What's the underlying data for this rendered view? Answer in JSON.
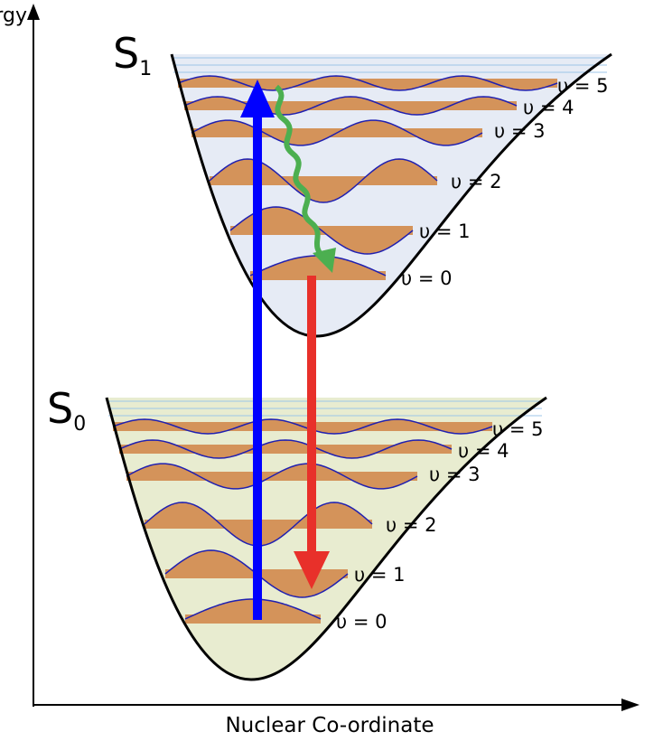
{
  "axes": {
    "y_label": "Energy",
    "x_label": "Nuclear Co-ordinate"
  },
  "states": [
    {
      "label": "S",
      "subscript": "1",
      "levels": [
        "υ = 0",
        "υ = 1",
        "υ = 2",
        "υ = 3",
        "υ = 4",
        "υ = 5"
      ]
    },
    {
      "label": "S",
      "subscript": "0",
      "levels": [
        "υ = 0",
        "υ = 1",
        "υ = 2",
        "υ = 3",
        "υ = 4",
        "υ = 5"
      ]
    }
  ]
}
